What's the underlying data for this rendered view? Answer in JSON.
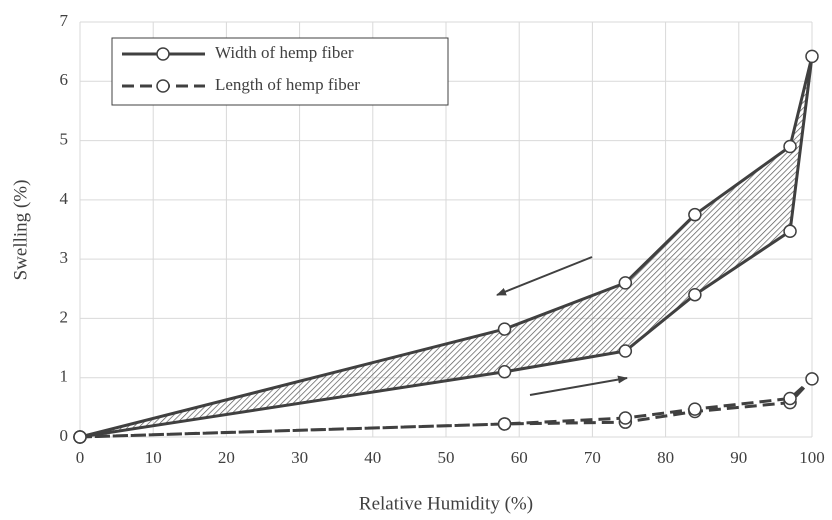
{
  "chart_data": {
    "type": "line",
    "x_label": "Relative Humidity (%)",
    "y_label": "Swelling (%)",
    "x": [
      0,
      58,
      74.5,
      84,
      97,
      100,
      97,
      84,
      74.5,
      58,
      0
    ],
    "series": [
      {
        "name": "Width of hemp fiber",
        "color": "#404040",
        "dash": "solid",
        "hatched": true,
        "values": [
          0,
          1.1,
          1.45,
          2.4,
          3.47,
          6.42,
          4.9,
          3.75,
          2.6,
          1.82,
          0
        ]
      },
      {
        "name": "Length of hemp fiber",
        "color": "#404040",
        "dash": "dashed",
        "hatched": false,
        "values": [
          0,
          0.22,
          0.25,
          0.43,
          0.58,
          0.98,
          0.65,
          0.47,
          0.32,
          0.22,
          0
        ]
      }
    ],
    "xlim": [
      0,
      100
    ],
    "xticks": [
      0,
      10,
      20,
      30,
      40,
      50,
      60,
      70,
      80,
      90,
      100
    ],
    "ylim": [
      0,
      7
    ],
    "yticks": [
      0,
      1,
      2,
      3,
      4,
      5,
      6,
      7
    ],
    "grid": true,
    "legend": "top-left"
  }
}
